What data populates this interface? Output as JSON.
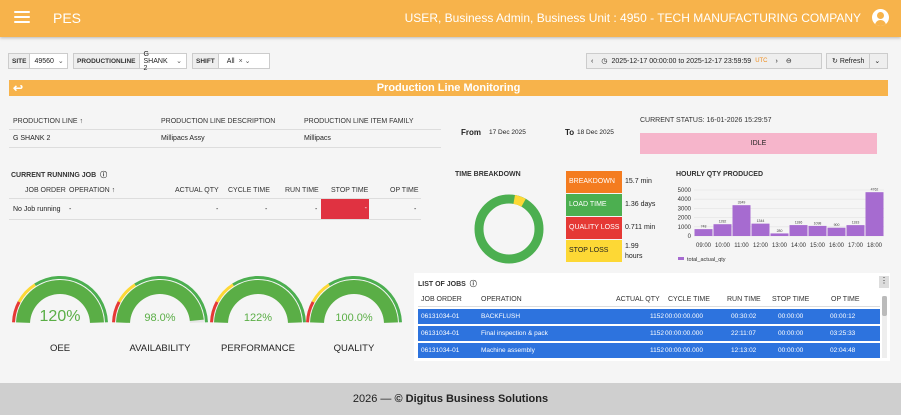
{
  "topbar": {
    "app_title": "PES",
    "user_info": "USER, Business Admin, Business Unit : 4950 - TECH MANUFACTURING COMPANY"
  },
  "filters": {
    "site_label": "SITE",
    "site_value": "49560",
    "line_label": "PRODUCTIONLINE",
    "line_value": "G SHANK 2",
    "shift_label": "SHIFT",
    "shift_value": "All",
    "time_range": "2025-12-17 00:00:00 to 2025-12-17 23:59:59",
    "timezone": "UTC",
    "refresh_label": "Refresh"
  },
  "banner_title": "Production Line Monitoring",
  "line_info": {
    "headers": [
      "PRODUCTION LINE",
      "PRODUCTION LINE DESCRIPTION",
      "PRODUCTION LINE ITEM FAMILY"
    ],
    "values": [
      "G SHANK 2",
      "Millipacs Assy",
      "Millipacs"
    ]
  },
  "date_range": {
    "from_label": "From",
    "from_value": "17 Dec 2025",
    "to_label": "To",
    "to_value": "18 Dec 2025"
  },
  "status": {
    "label": "CURRENT STATUS: 16-01-2026 15:29:57",
    "value": "IDLE",
    "color": "#f6b5cb"
  },
  "running_job": {
    "title": "CURRENT RUNNING JOB",
    "headers": [
      "JOB ORDER",
      "OPERATION",
      "ACTUAL QTY",
      "CYCLE TIME",
      "RUN TIME",
      "STOP TIME",
      "OP TIME"
    ],
    "values": [
      "No Job running",
      "-",
      "-",
      "-",
      "-",
      "-",
      "-"
    ]
  },
  "time_breakdown": {
    "title": "TIME BREAKDOWN",
    "items": [
      {
        "label": "BREAKDOWN",
        "value": "15.7 min",
        "color": "#f47c20"
      },
      {
        "label": "LOAD TIME",
        "value": "1.36 days",
        "color": "#4caf50"
      },
      {
        "label": "QUALITY LOSS",
        "value": "0.711 min",
        "color": "#e53935"
      },
      {
        "label": "STOP LOSS",
        "value": "1.99 hours",
        "color": "#fdd835"
      }
    ]
  },
  "hourly": {
    "title": "HOURLY QTY PRODUCED",
    "legend": "total_actual_qty"
  },
  "chart_data": {
    "type": "bar",
    "title": "HOURLY QTY PRODUCED",
    "categories": [
      "09:00",
      "10:00",
      "11:00",
      "12:00",
      "13:00",
      "14:00",
      "15:00",
      "16:00",
      "17:00",
      "18:00"
    ],
    "series": [
      {
        "name": "total_actual_qty",
        "values": [
          748,
          1282,
          3349,
          1344,
          280,
          1186,
          1098,
          900,
          1183,
          4762
        ]
      }
    ],
    "yticks": [
      0,
      1000,
      2000,
      3000,
      4000,
      5000
    ],
    "ylim": [
      0,
      5000
    ],
    "color": "#a66bd0"
  },
  "gauges": [
    {
      "label": "OEE",
      "value": "120%",
      "fraction": 1.0
    },
    {
      "label": "AVAILABILITY",
      "value": "98.0%",
      "fraction": 0.98
    },
    {
      "label": "PERFORMANCE",
      "value": "122%",
      "fraction": 1.0
    },
    {
      "label": "QUALITY",
      "value": "100.0%",
      "fraction": 1.0
    }
  ],
  "jobs": {
    "title": "LIST OF JOBS",
    "headers": [
      "JOB ORDER",
      "OPERATION",
      "ACTUAL QTY",
      "CYCLE TIME",
      "RUN TIME",
      "STOP TIME",
      "OP TIME"
    ],
    "rows": [
      [
        "06131034-01",
        "BACKFLUSH",
        "1152",
        "00:00:00.000",
        "00:30:02",
        "00:00:00",
        "00:00:12"
      ],
      [
        "06131034-01",
        "Final inspection & pack",
        "1152",
        "00:00:00.000",
        "22:11:07",
        "00:00:00",
        "03:25:33"
      ],
      [
        "06131034-01",
        "Machine assembly",
        "1152",
        "00:00:00.000",
        "12:13:02",
        "00:00:00",
        "02:04:48"
      ]
    ]
  },
  "footer": {
    "year": "2026 —",
    "company": "© Digitus Business Solutions"
  }
}
